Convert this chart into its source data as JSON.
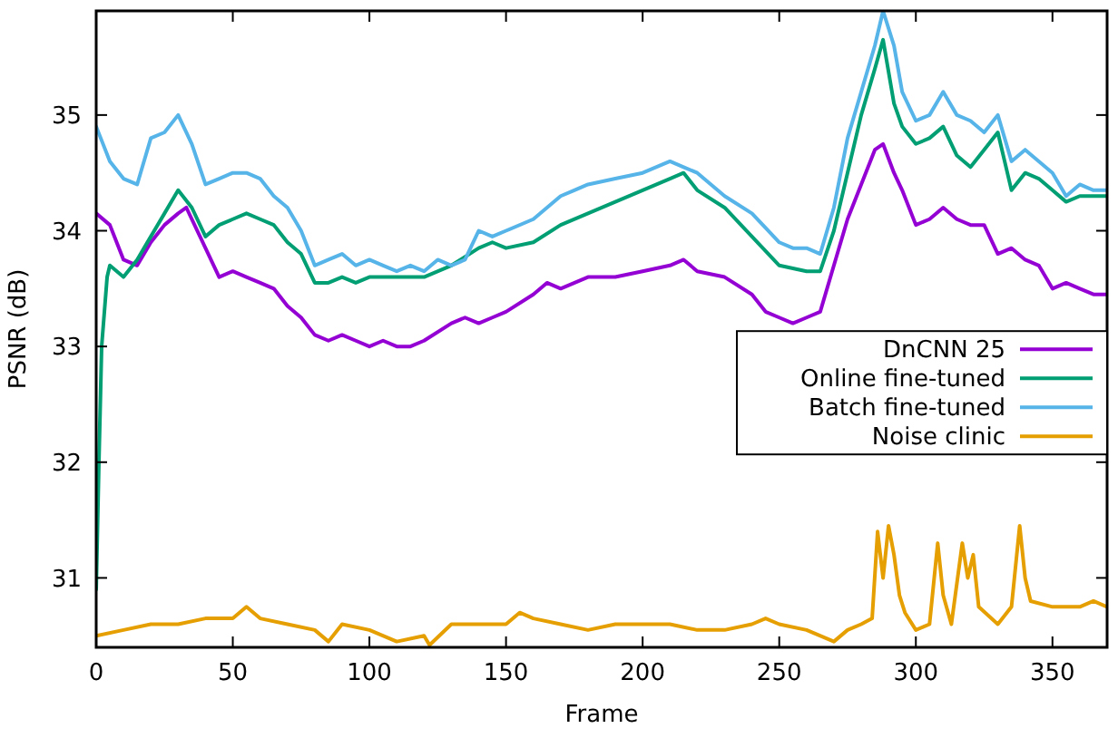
{
  "chart_data": {
    "type": "line",
    "xlabel": "Frame",
    "ylabel": "PSNR (dB)",
    "xlim": [
      0,
      370
    ],
    "ylim": [
      30.4,
      35.9
    ],
    "xticks": [
      0,
      50,
      100,
      150,
      200,
      250,
      300,
      350
    ],
    "yticks": [
      31,
      32,
      33,
      34,
      35
    ],
    "grid": false,
    "legend": "right",
    "line_style": "solid",
    "marker": "none",
    "series": [
      {
        "name": "DnCNN 25",
        "color": "#9400d3",
        "x": [
          0,
          5,
          10,
          15,
          20,
          25,
          30,
          33,
          40,
          45,
          50,
          55,
          60,
          65,
          70,
          75,
          80,
          85,
          90,
          95,
          100,
          105,
          110,
          115,
          120,
          130,
          135,
          140,
          145,
          150,
          160,
          165,
          170,
          180,
          190,
          200,
          210,
          215,
          220,
          230,
          240,
          245,
          250,
          255,
          260,
          265,
          270,
          275,
          280,
          285,
          288,
          292,
          295,
          300,
          305,
          310,
          315,
          320,
          325,
          330,
          335,
          340,
          345,
          350,
          355,
          360,
          365,
          370
        ],
        "values": [
          34.15,
          34.05,
          33.75,
          33.7,
          33.9,
          34.05,
          34.15,
          34.2,
          33.85,
          33.6,
          33.65,
          33.6,
          33.55,
          33.5,
          33.35,
          33.25,
          33.1,
          33.05,
          33.1,
          33.05,
          33.0,
          33.05,
          33.0,
          33.0,
          33.05,
          33.2,
          33.25,
          33.2,
          33.25,
          33.3,
          33.45,
          33.55,
          33.5,
          33.6,
          33.6,
          33.65,
          33.7,
          33.75,
          33.65,
          33.6,
          33.45,
          33.3,
          33.25,
          33.2,
          33.25,
          33.3,
          33.7,
          34.1,
          34.4,
          34.7,
          34.75,
          34.5,
          34.35,
          34.05,
          34.1,
          34.2,
          34.1,
          34.05,
          34.05,
          33.8,
          33.85,
          33.75,
          33.7,
          33.5,
          33.55,
          33.5,
          33.45,
          33.45
        ]
      },
      {
        "name": "Online fine-tuned",
        "color": "#009e73",
        "x": [
          0,
          1,
          2,
          4,
          5,
          10,
          15,
          20,
          25,
          30,
          35,
          40,
          45,
          50,
          55,
          60,
          65,
          70,
          75,
          80,
          85,
          90,
          95,
          100,
          110,
          120,
          130,
          140,
          145,
          150,
          160,
          170,
          180,
          190,
          200,
          210,
          215,
          220,
          230,
          240,
          250,
          260,
          265,
          270,
          275,
          280,
          285,
          288,
          292,
          295,
          300,
          305,
          310,
          315,
          320,
          325,
          330,
          335,
          340,
          345,
          350,
          355,
          360,
          365,
          370
        ],
        "values": [
          30.9,
          32.0,
          33.0,
          33.6,
          33.7,
          33.6,
          33.75,
          33.95,
          34.15,
          34.35,
          34.2,
          33.95,
          34.05,
          34.1,
          34.15,
          34.1,
          34.05,
          33.9,
          33.8,
          33.55,
          33.55,
          33.6,
          33.55,
          33.6,
          33.6,
          33.6,
          33.7,
          33.85,
          33.9,
          33.85,
          33.9,
          34.05,
          34.15,
          34.25,
          34.35,
          34.45,
          34.5,
          34.35,
          34.2,
          33.95,
          33.7,
          33.65,
          33.65,
          34.0,
          34.5,
          35.0,
          35.4,
          35.65,
          35.1,
          34.9,
          34.75,
          34.8,
          34.9,
          34.65,
          34.55,
          34.7,
          34.85,
          34.35,
          34.5,
          34.45,
          34.35,
          34.25,
          34.3,
          34.3,
          34.3
        ]
      },
      {
        "name": "Batch fine-tuned",
        "color": "#56b4e9",
        "x": [
          0,
          5,
          10,
          15,
          20,
          25,
          30,
          35,
          40,
          45,
          50,
          55,
          60,
          65,
          70,
          75,
          80,
          85,
          90,
          95,
          100,
          105,
          110,
          115,
          120,
          125,
          130,
          135,
          140,
          145,
          150,
          160,
          170,
          175,
          180,
          190,
          200,
          210,
          215,
          220,
          230,
          240,
          250,
          255,
          260,
          265,
          270,
          275,
          280,
          285,
          288,
          292,
          295,
          300,
          305,
          310,
          315,
          320,
          325,
          330,
          335,
          340,
          345,
          350,
          355,
          360,
          365,
          370
        ],
        "values": [
          34.9,
          34.6,
          34.45,
          34.4,
          34.8,
          34.85,
          35.0,
          34.75,
          34.4,
          34.45,
          34.5,
          34.5,
          34.45,
          34.3,
          34.2,
          34.0,
          33.7,
          33.75,
          33.8,
          33.7,
          33.75,
          33.7,
          33.65,
          33.7,
          33.65,
          33.75,
          33.7,
          33.75,
          34.0,
          33.95,
          34.0,
          34.1,
          34.3,
          34.35,
          34.4,
          34.45,
          34.5,
          34.6,
          34.55,
          34.5,
          34.3,
          34.15,
          33.9,
          33.85,
          33.85,
          33.8,
          34.2,
          34.8,
          35.2,
          35.6,
          35.9,
          35.6,
          35.2,
          34.95,
          35.0,
          35.2,
          35.0,
          34.95,
          34.85,
          35.0,
          34.6,
          34.7,
          34.6,
          34.5,
          34.3,
          34.4,
          34.35,
          34.35
        ]
      },
      {
        "name": "Noise clinic",
        "color": "#e69f00",
        "x": [
          0,
          10,
          20,
          30,
          40,
          50,
          55,
          60,
          70,
          80,
          85,
          90,
          100,
          110,
          120,
          122,
          130,
          140,
          150,
          155,
          160,
          170,
          180,
          190,
          200,
          210,
          220,
          230,
          240,
          245,
          250,
          260,
          270,
          275,
          280,
          284,
          286,
          288,
          290,
          292,
          294,
          296,
          300,
          305,
          308,
          310,
          313,
          317,
          319,
          321,
          323,
          330,
          335,
          338,
          340,
          342,
          350,
          360,
          365,
          370
        ],
        "values": [
          30.5,
          30.55,
          30.6,
          30.6,
          30.65,
          30.65,
          30.75,
          30.65,
          30.6,
          30.55,
          30.45,
          30.6,
          30.55,
          30.45,
          30.5,
          30.42,
          30.6,
          30.6,
          30.6,
          30.7,
          30.65,
          30.6,
          30.55,
          30.6,
          30.6,
          30.6,
          30.55,
          30.55,
          30.6,
          30.65,
          30.6,
          30.55,
          30.45,
          30.55,
          30.6,
          30.65,
          31.4,
          31.0,
          31.45,
          31.2,
          30.85,
          30.7,
          30.55,
          30.6,
          31.3,
          30.85,
          30.6,
          31.3,
          31.0,
          31.2,
          30.75,
          30.6,
          30.75,
          31.45,
          31.0,
          30.8,
          30.75,
          30.75,
          30.8,
          30.75
        ]
      }
    ]
  }
}
